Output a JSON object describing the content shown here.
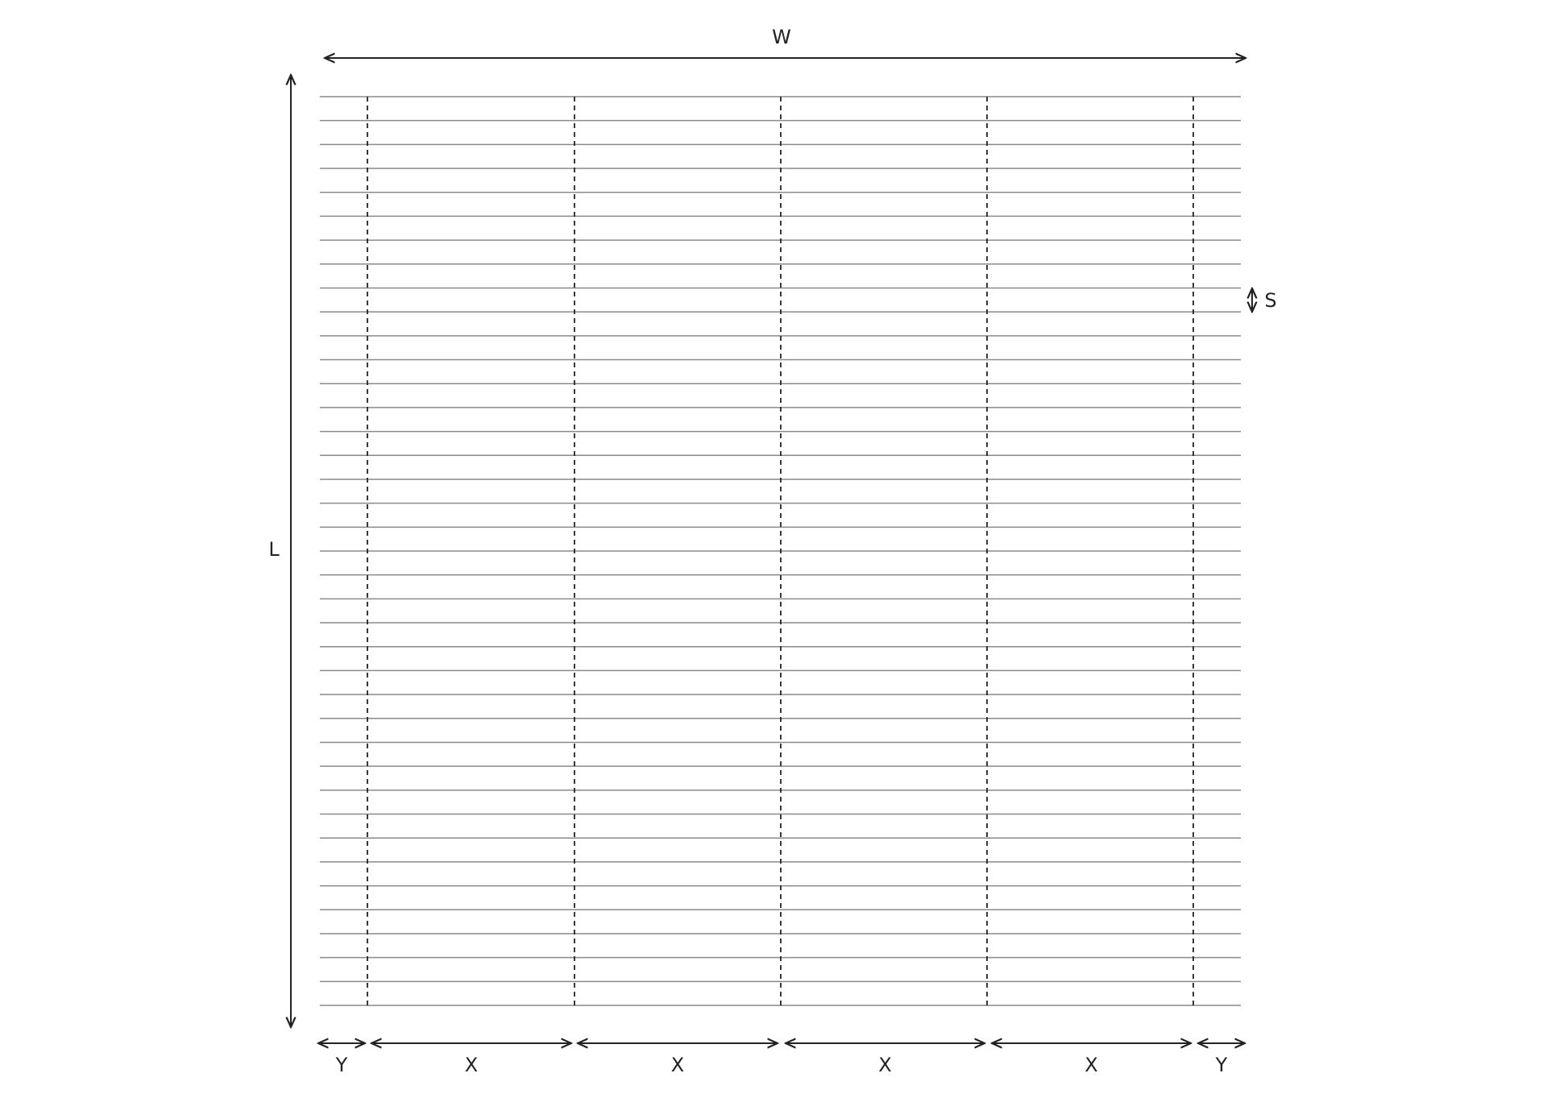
{
  "labels": {
    "width": "W",
    "length": "L",
    "spacing": "S",
    "bottom": [
      "Y",
      "X",
      "X",
      "X",
      "X",
      "Y"
    ]
  }
}
